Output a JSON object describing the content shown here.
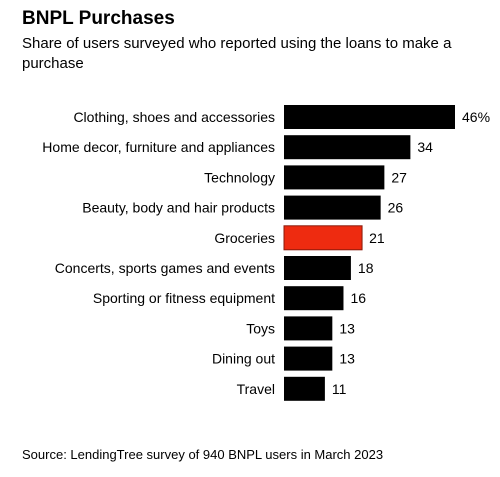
{
  "chart_data": {
    "type": "bar",
    "orientation": "horizontal",
    "title": "BNPL Purchases",
    "subtitle": "Share of users surveyed who reported using the loans to make a purchase",
    "categories": [
      "Clothing, shoes and accessories",
      "Home decor, furniture and appliances",
      "Technology",
      "Beauty, body and hair products",
      "Groceries",
      "Concerts, sports games and events",
      "Sporting or fitness equipment",
      "Toys",
      "Dining out",
      "Travel"
    ],
    "values": [
      46,
      34,
      27,
      26,
      21,
      18,
      16,
      13,
      13,
      11
    ],
    "value_labels": [
      "46%",
      "34",
      "27",
      "26",
      "21",
      "18",
      "16",
      "13",
      "13",
      "11"
    ],
    "highlight_index": 4,
    "colors": {
      "bar": "#000000",
      "highlight": "#ee2b10",
      "highlight_border": "#8a1a0a"
    },
    "xlim": [
      0,
      46
    ],
    "grid": false,
    "legend": "none"
  },
  "source": "Source: LendingTree survey of 940 BNPL users in March 2023"
}
